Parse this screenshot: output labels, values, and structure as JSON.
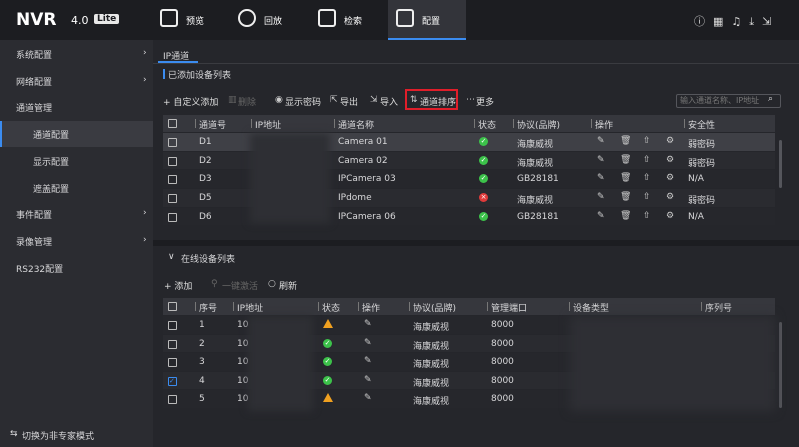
{
  "header": {
    "logo": "NVR",
    "version": "4.0",
    "edition": "Lite",
    "nav": [
      {
        "label": "预览",
        "active": false
      },
      {
        "label": "回放",
        "active": false
      },
      {
        "label": "检索",
        "active": false
      },
      {
        "label": "配置",
        "active": true
      }
    ]
  },
  "sidebar": {
    "items": [
      {
        "label": "系统配置",
        "sub": false,
        "arrow": true,
        "active": false
      },
      {
        "label": "网络配置",
        "sub": false,
        "arrow": true,
        "active": false
      },
      {
        "label": "通道管理",
        "sub": false,
        "arrow": false,
        "active": false
      },
      {
        "label": "通道配置",
        "sub": true,
        "arrow": false,
        "active": true
      },
      {
        "label": "显示配置",
        "sub": true,
        "arrow": false,
        "active": false
      },
      {
        "label": "遮盖配置",
        "sub": true,
        "arrow": false,
        "active": false
      },
      {
        "label": "事件配置",
        "sub": false,
        "arrow": true,
        "active": false
      },
      {
        "label": "录像管理",
        "sub": false,
        "arrow": true,
        "active": false
      },
      {
        "label": "RS232配置",
        "sub": false,
        "arrow": false,
        "active": false
      }
    ],
    "footer": "切换为非专家模式"
  },
  "tab": "IP通道",
  "added": {
    "title": "已添加设备列表",
    "toolbar": [
      {
        "label": "+ 自定义添加",
        "disabled": false,
        "highlight": false
      },
      {
        "label": "删除",
        "disabled": true,
        "highlight": false
      },
      {
        "label": "显示密码",
        "disabled": false,
        "highlight": false
      },
      {
        "label": "导出",
        "disabled": false,
        "highlight": false
      },
      {
        "label": "导入",
        "disabled": false,
        "highlight": false
      },
      {
        "label": "通道排序",
        "disabled": false,
        "highlight": true
      },
      {
        "label": "更多",
        "disabled": false,
        "highlight": false
      }
    ],
    "search_placeholder": "输入通道名称、IP地址",
    "columns": [
      "通道号",
      "IP地址",
      "通道名称",
      "状态",
      "协议(品牌)",
      "操作",
      "安全性"
    ],
    "rows": [
      {
        "channel": "D1",
        "name": "Camera 01",
        "status": "ok",
        "protocol": "海康威视",
        "security": "弱密码",
        "selected": true
      },
      {
        "channel": "D2",
        "name": "Camera 02",
        "status": "ok",
        "protocol": "海康威视",
        "security": "弱密码",
        "selected": false
      },
      {
        "channel": "D3",
        "name": "IPCamera 03",
        "status": "ok",
        "protocol": "GB28181",
        "security": "N/A",
        "selected": false
      },
      {
        "channel": "D5",
        "name": "IPdome",
        "status": "error",
        "protocol": "海康威视",
        "security": "弱密码",
        "selected": false
      },
      {
        "channel": "D6",
        "name": "IPCamera 06",
        "status": "ok",
        "protocol": "GB28181",
        "security": "N/A",
        "selected": false
      }
    ]
  },
  "online": {
    "title": "在线设备列表",
    "toolbar": [
      {
        "label": "+ 添加",
        "disabled": false
      },
      {
        "label": "一键激活",
        "disabled": true
      },
      {
        "label": "刷新",
        "disabled": false
      }
    ],
    "columns": [
      "序号",
      "IP地址",
      "状态",
      "操作",
      "协议(品牌)",
      "管理端口",
      "设备类型",
      "序列号"
    ],
    "rows": [
      {
        "index": "1",
        "ip": "10",
        "status": "warn",
        "protocol": "海康威视",
        "port": "8000",
        "checked": false
      },
      {
        "index": "2",
        "ip": "10",
        "status": "ok",
        "protocol": "海康威视",
        "port": "8000",
        "checked": false
      },
      {
        "index": "3",
        "ip": "10",
        "status": "ok",
        "protocol": "海康威视",
        "port": "8000",
        "checked": false
      },
      {
        "index": "4",
        "ip": "10",
        "status": "ok",
        "protocol": "海康威视",
        "port": "8000",
        "checked": true
      },
      {
        "index": "5",
        "ip": "10",
        "status": "warn",
        "protocol": "海康威视",
        "port": "8000",
        "checked": false
      }
    ]
  }
}
